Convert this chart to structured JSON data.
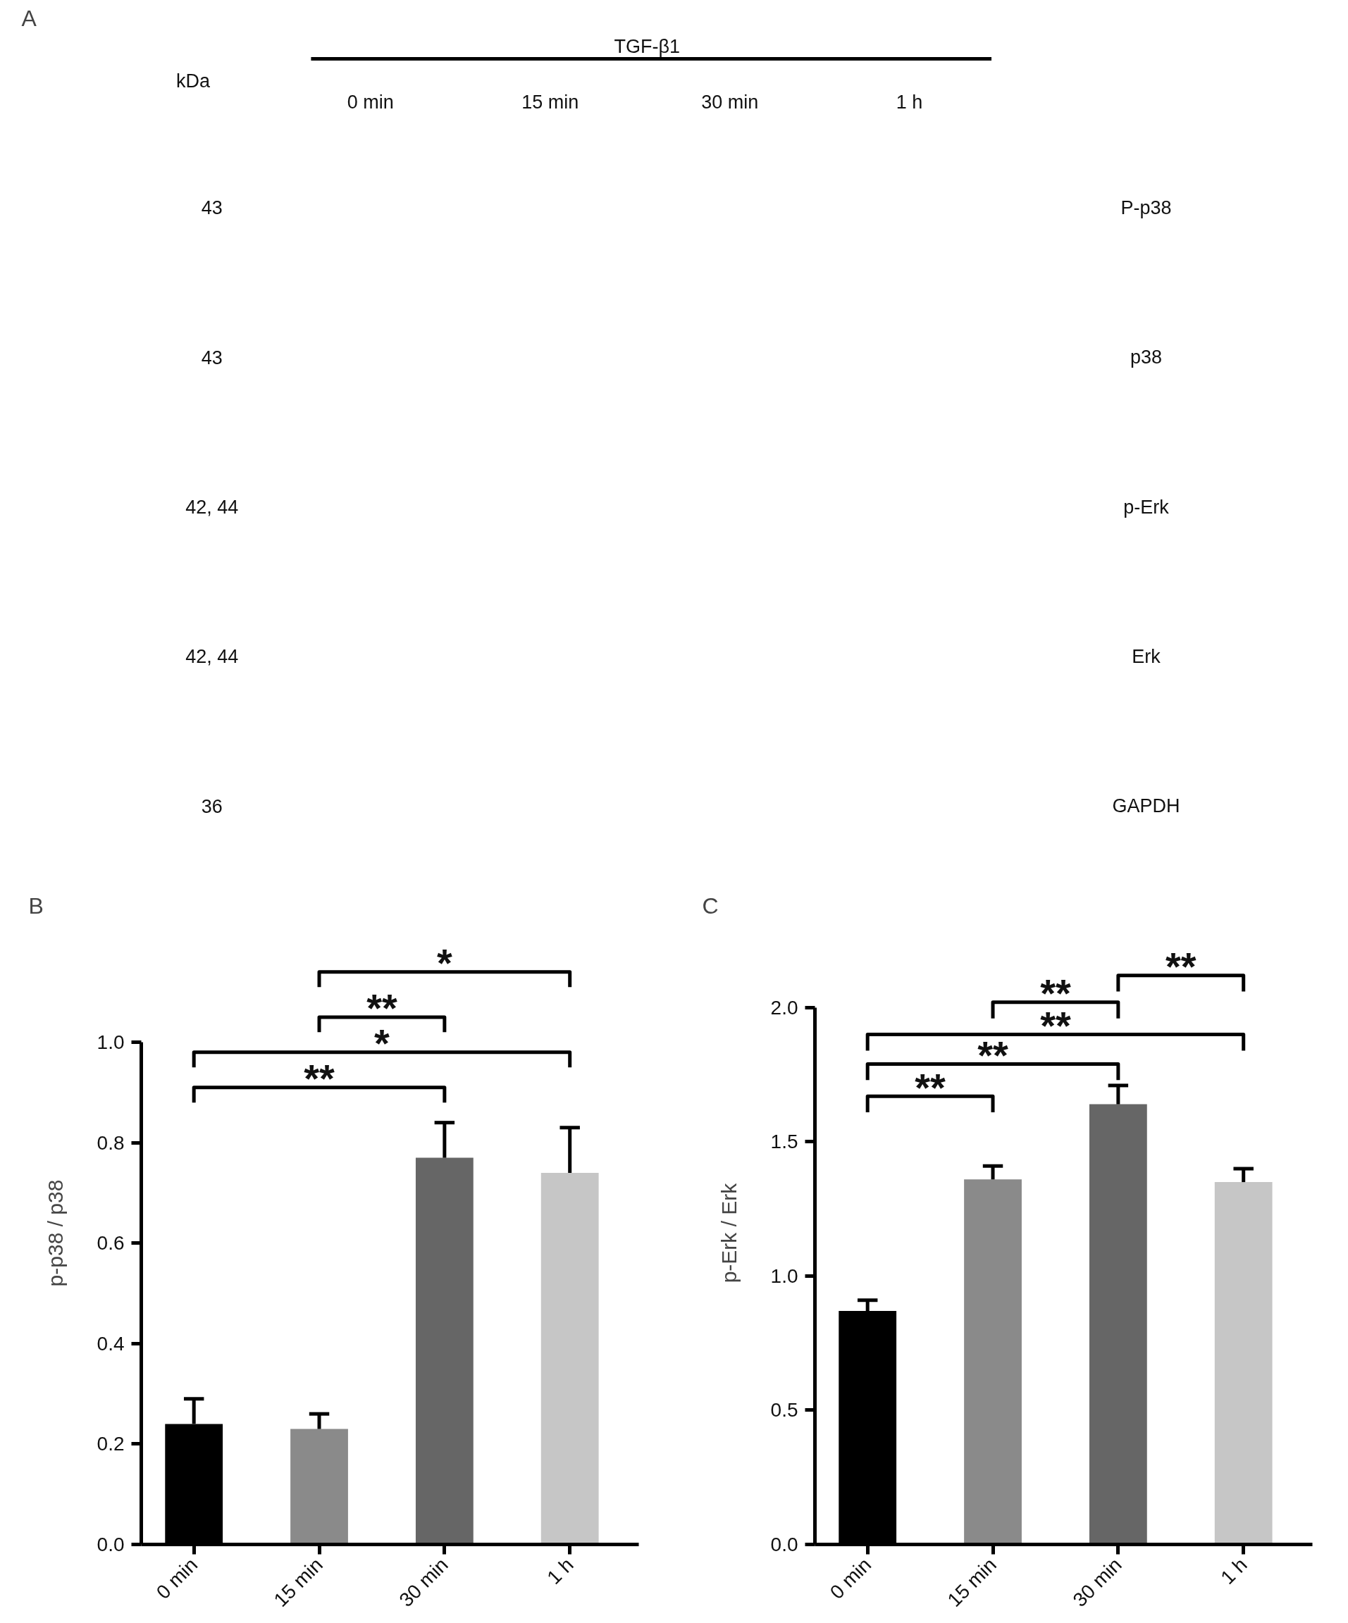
{
  "chart_data": [
    {
      "type": "other",
      "title": "A",
      "xlabel": "TGF-β1",
      "ylabel": "kDa",
      "categories": [
        "0 min",
        "15 min",
        "30 min",
        "1 h"
      ],
      "y_categories": [
        "43",
        "43",
        "42, 44",
        "42, 44",
        "36"
      ],
      "y2_categories": [
        "P-p38",
        "p38",
        "p-Erk",
        "Erk",
        "GAPDH"
      ]
    },
    {
      "type": "bar",
      "title": "B",
      "ylabel": "p-p38 / p38",
      "categories": [
        "0 min",
        "15 min",
        "30 min",
        "1 h"
      ],
      "values": [
        0.24,
        0.23,
        0.77,
        0.74
      ],
      "colors": [
        "#000000",
        "#8a8a8a",
        "#666666",
        "#c6c6c6"
      ],
      "errors": [
        [
          0.24,
          0.29
        ],
        [
          0.23,
          0.26
        ],
        [
          0.77,
          0.84
        ],
        [
          0.74,
          0.83
        ]
      ],
      "ylim": [
        0,
        1.0
      ],
      "yticks": [
        {
          "value": 0,
          "label": "0.0"
        },
        0.2,
        0.4,
        0.6,
        0.8,
        {
          "value": 1.0,
          "label": "1.0"
        }
      ],
      "annotations": [
        "**",
        "*",
        "**",
        "*"
      ]
    },
    {
      "type": "bar",
      "title": "C",
      "ylabel": "p-Erk / Erk",
      "categories": [
        "0 min",
        "15 min",
        "30 min",
        "1 h"
      ],
      "values": [
        0.87,
        1.36,
        1.64,
        1.35
      ],
      "colors": [
        "#000000",
        "#8a8a8a",
        "#666666",
        "#c6c6c6"
      ],
      "errors": [
        [
          0.87,
          0.91
        ],
        [
          1.36,
          1.41
        ],
        [
          1.64,
          1.71
        ],
        [
          1.35,
          1.4
        ]
      ],
      "ylim": [
        0,
        2.0
      ],
      "yticks": [
        {
          "value": 0,
          "label": "0.0"
        },
        0.5,
        {
          "value": 1.0,
          "label": "1.0"
        },
        1.5,
        {
          "value": 2.0,
          "label": "2.0"
        }
      ],
      "annotations": [
        "**",
        "**",
        "**",
        "**",
        "**"
      ]
    }
  ]
}
